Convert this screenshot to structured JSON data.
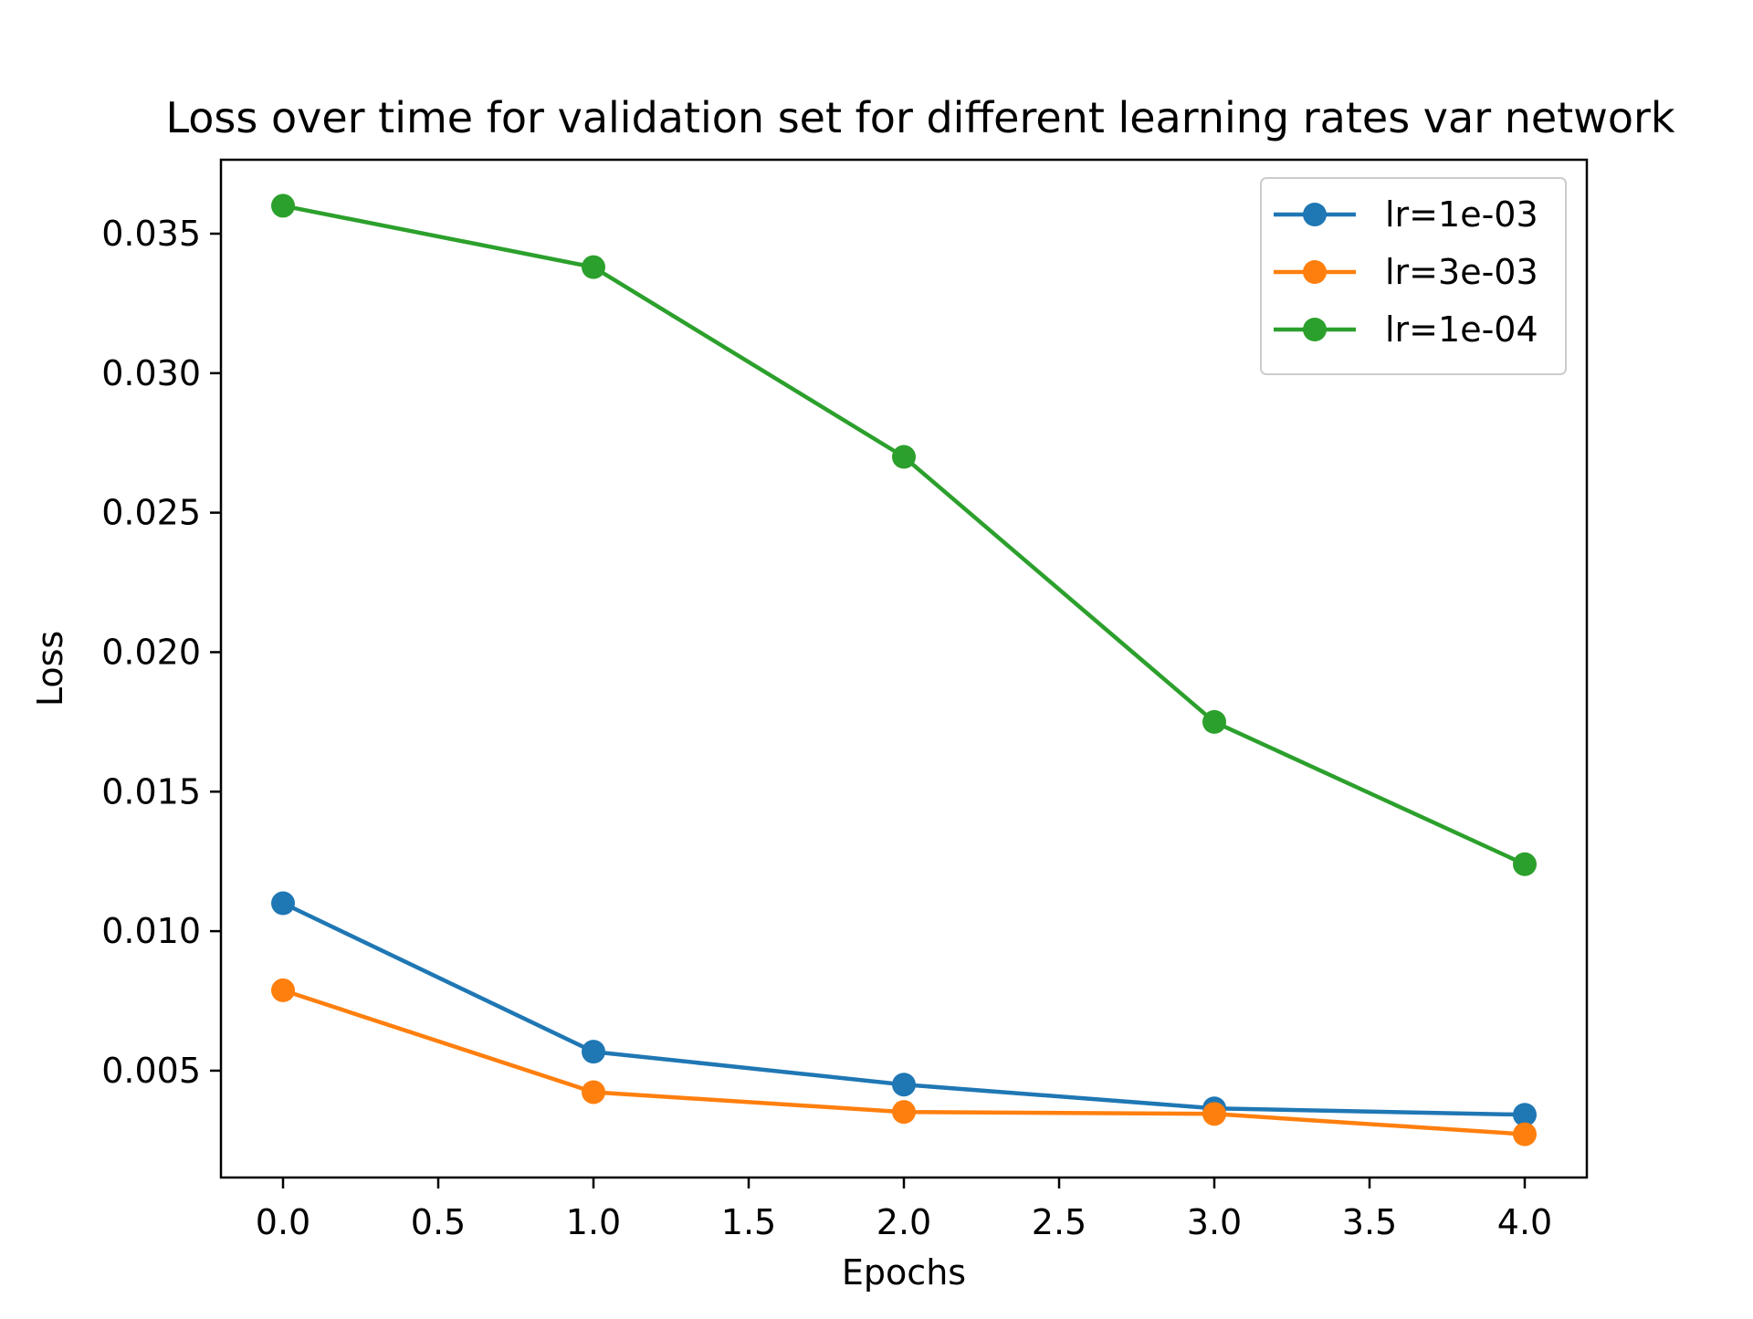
{
  "chart_data": {
    "type": "line",
    "title": "Loss over time for validation set for different learning rates var network",
    "xlabel": "Epochs",
    "ylabel": "Loss",
    "xlim": [
      -0.2,
      4.2
    ],
    "ylim": [
      0.00117,
      0.03765
    ],
    "xticks": [
      0.0,
      0.5,
      1.0,
      1.5,
      2.0,
      2.5,
      3.0,
      3.5,
      4.0
    ],
    "xtick_labels": [
      "0.0",
      "0.5",
      "1.0",
      "1.5",
      "2.0",
      "2.5",
      "3.0",
      "3.5",
      "4.0"
    ],
    "yticks": [
      0.005,
      0.01,
      0.015,
      0.02,
      0.025,
      0.03,
      0.035
    ],
    "ytick_labels": [
      "0.005",
      "0.010",
      "0.015",
      "0.020",
      "0.025",
      "0.030",
      "0.035"
    ],
    "grid": false,
    "legend_position": "top-right",
    "x": [
      0,
      1,
      2,
      3,
      4
    ],
    "series": [
      {
        "name": "lr=1e-03",
        "color": "#1f77b4",
        "values": [
          0.011,
          0.00568,
          0.0045,
          0.00365,
          0.00342
        ]
      },
      {
        "name": "lr=3e-03",
        "color": "#ff7f0e",
        "values": [
          0.00788,
          0.00423,
          0.00352,
          0.00345,
          0.00272
        ]
      },
      {
        "name": "lr=1e-04",
        "color": "#2ca02c",
        "values": [
          0.036,
          0.0338,
          0.027,
          0.0175,
          0.0124
        ]
      }
    ]
  }
}
